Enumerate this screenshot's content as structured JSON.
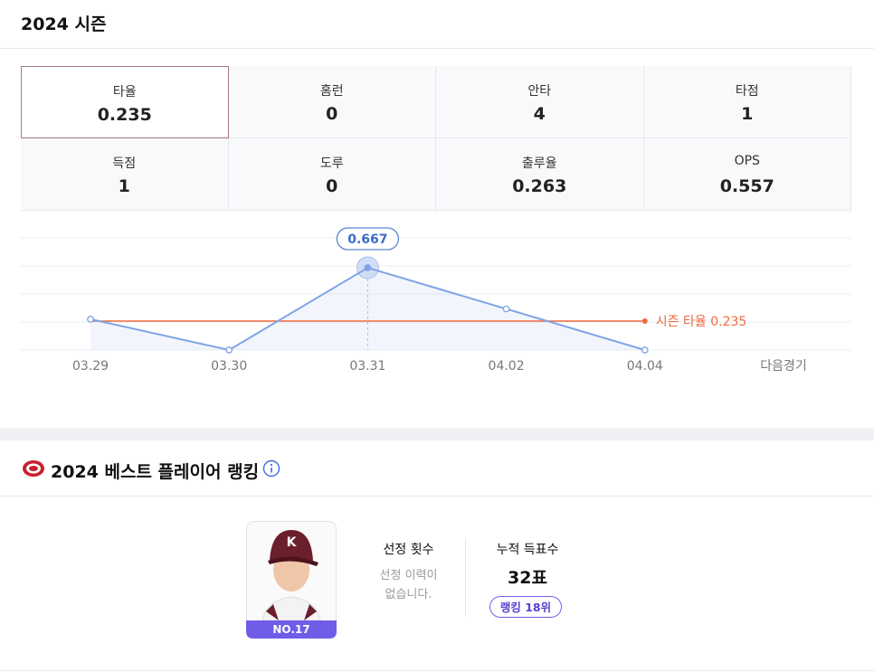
{
  "header": {
    "title": "2024 시즌"
  },
  "stats": [
    {
      "label": "타율",
      "value": "0.235"
    },
    {
      "label": "홈런",
      "value": "0"
    },
    {
      "label": "안타",
      "value": "4"
    },
    {
      "label": "타점",
      "value": "1"
    },
    {
      "label": "득점",
      "value": "1"
    },
    {
      "label": "도루",
      "value": "0"
    },
    {
      "label": "출루율",
      "value": "0.263"
    },
    {
      "label": "OPS",
      "value": "0.557"
    }
  ],
  "chart_data": {
    "type": "line",
    "categories": [
      "03.29",
      "03.30",
      "03.31",
      "04.02",
      "04.04",
      "다음경기"
    ],
    "series": [
      {
        "name": "타율",
        "color": "#7fa3e6",
        "values": [
          0.25,
          0,
          0.667,
          0.333,
          0,
          null
        ]
      }
    ],
    "ylim": [
      0,
      1
    ],
    "reference": {
      "label": "시즌 타율 0.235",
      "value": 0.235,
      "color": "#ef6a3f"
    }
  },
  "ranking": {
    "title": "2024 베스트 플레이어 랭킹",
    "player_number": "NO.17",
    "selection_label": "선정 횟수",
    "selection_text": [
      "선정 이력이",
      "없습니다."
    ],
    "votes_label": "누적 득표수",
    "votes_value": "32표",
    "rank_badge": "랭킹 18위"
  }
}
